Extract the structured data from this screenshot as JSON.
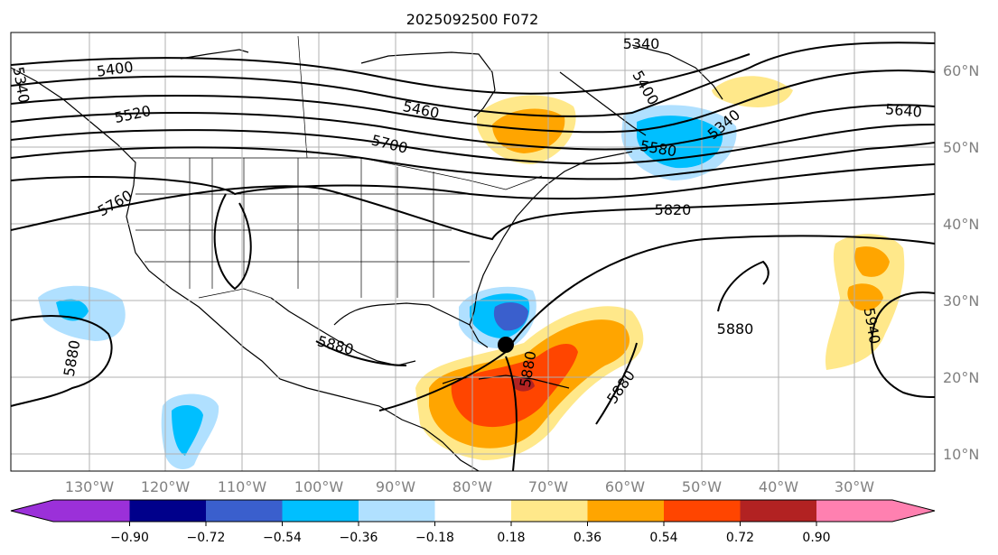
{
  "title": "2025092500 F072",
  "lat_labels": [
    "60°N",
    "50°N",
    "40°N",
    "30°N",
    "20°N",
    "10°N"
  ],
  "lon_labels": [
    "130°W",
    "120°W",
    "110°W",
    "100°W",
    "90°W",
    "80°W",
    "70°W",
    "60°W",
    "50°W",
    "40°W",
    "30°W"
  ],
  "colorbar": {
    "ticks": [
      "−0.90",
      "−0.72",
      "−0.54",
      "−0.36",
      "−0.18",
      "0.18",
      "0.36",
      "0.54",
      "0.72",
      "0.90"
    ],
    "colors": [
      "#9b30d9",
      "#00008b",
      "#3a5fcd",
      "#00bfff",
      "#b0e0ff",
      "#ffffff",
      "#ffe88a",
      "#ffa500",
      "#ff4500",
      "#b22222",
      "#ff80b0"
    ]
  },
  "contour_labels": [
    "5340",
    "5400",
    "5460",
    "5520",
    "5640",
    "5700",
    "5760",
    "5820",
    "5880",
    "5940"
  ],
  "contour_label_items": [
    {
      "text": "5340"
    },
    {
      "text": "5340"
    },
    {
      "text": "5340"
    },
    {
      "text": "5400"
    },
    {
      "text": "5400"
    },
    {
      "text": "5460"
    },
    {
      "text": "5520"
    },
    {
      "text": "5580"
    },
    {
      "text": "5640"
    },
    {
      "text": "5700"
    },
    {
      "text": "5760"
    },
    {
      "text": "5820"
    },
    {
      "text": "5880"
    },
    {
      "text": "5880"
    },
    {
      "text": "5880"
    },
    {
      "text": "5880"
    },
    {
      "text": "5880"
    },
    {
      "text": "5940"
    }
  ],
  "marker": "storm-center"
}
